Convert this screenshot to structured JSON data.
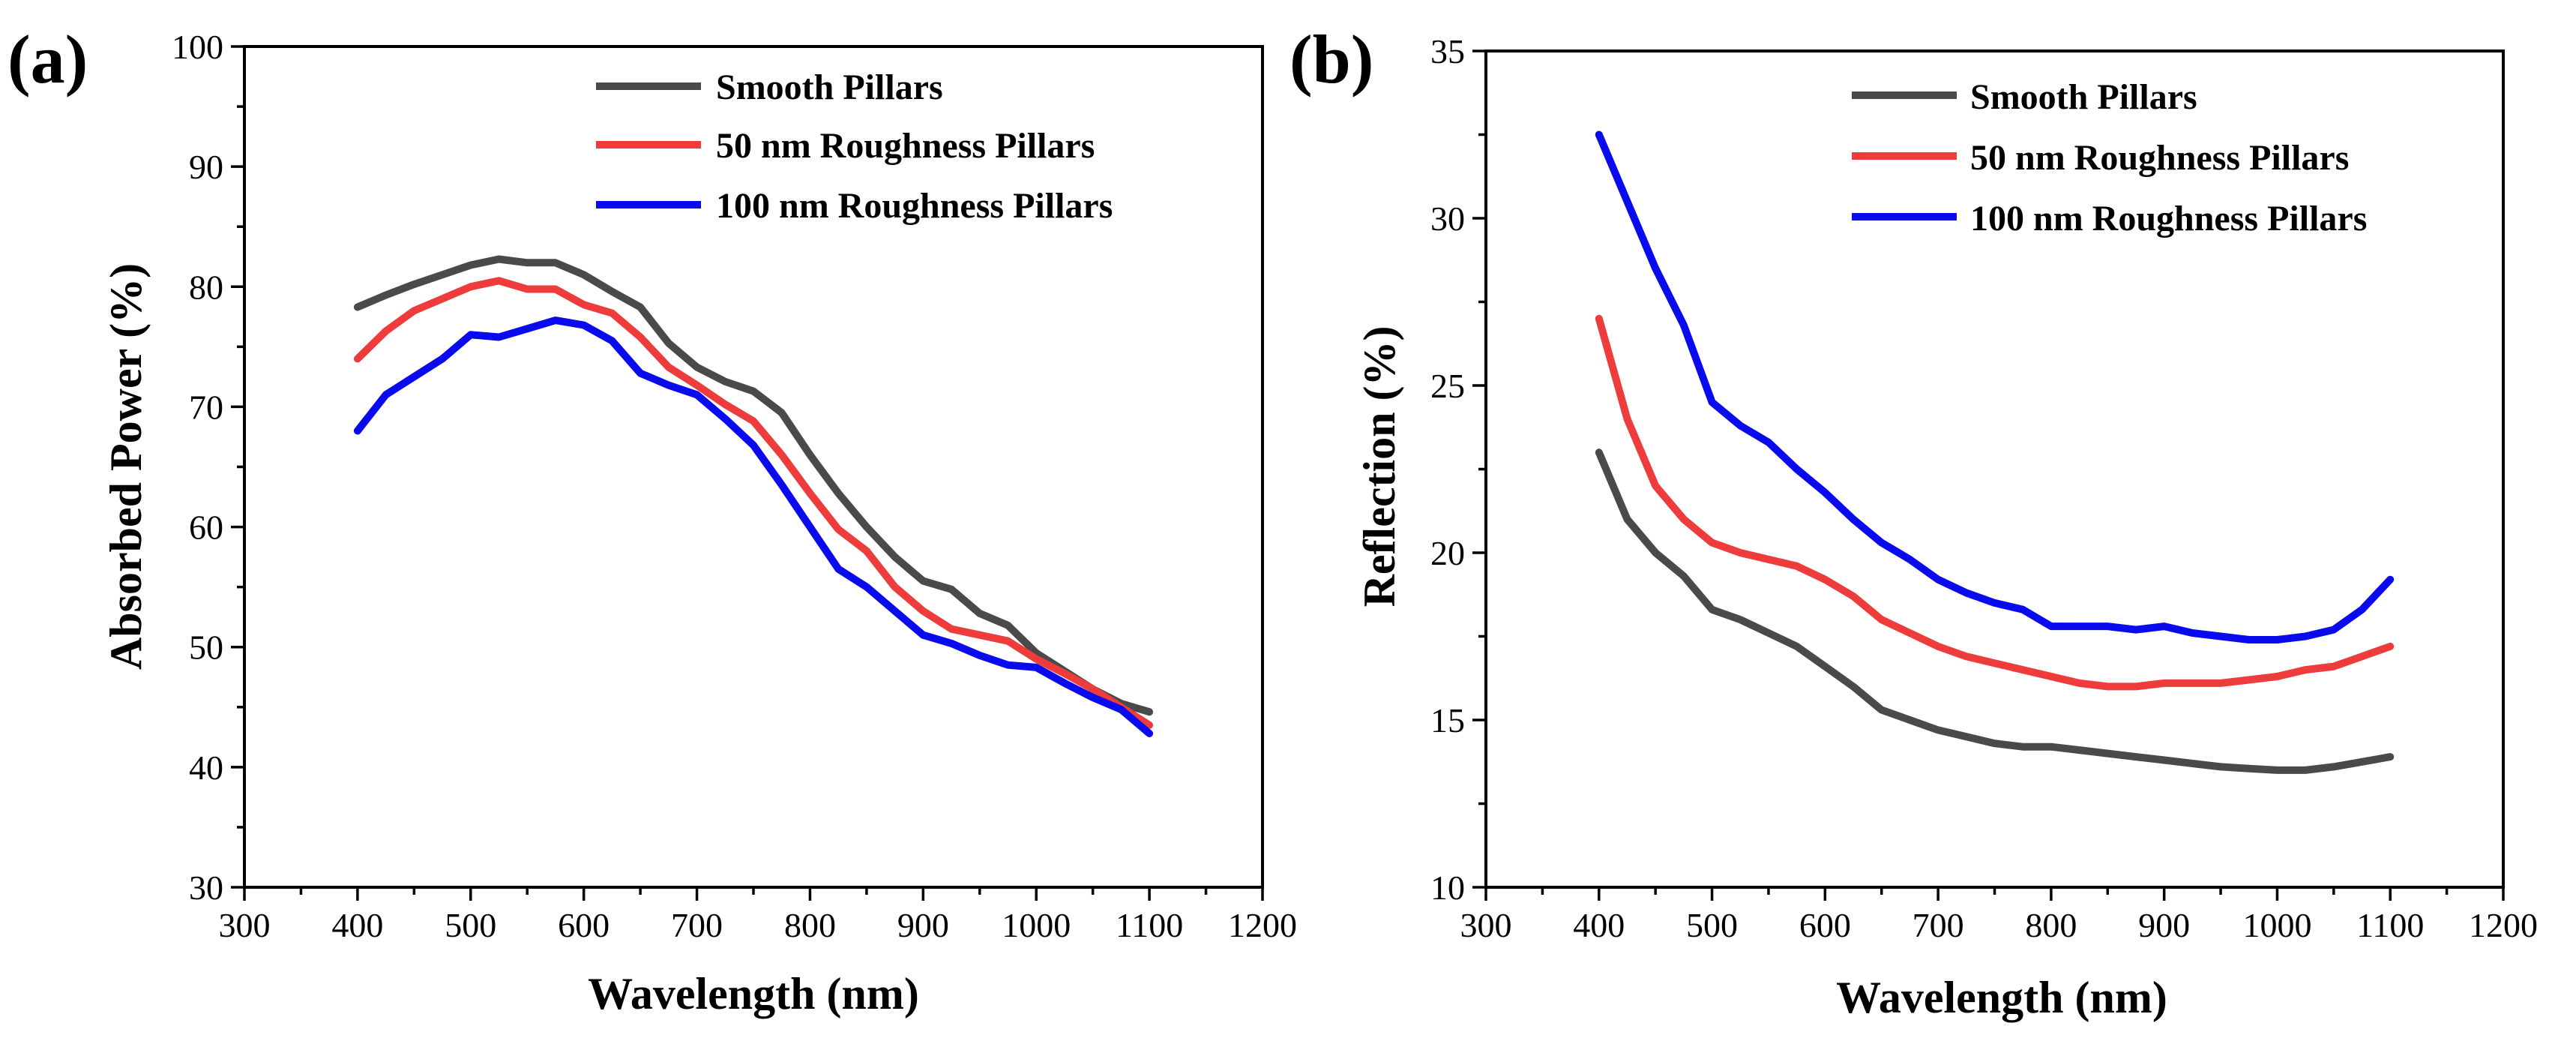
{
  "figure_title": "",
  "chart_data": [
    {
      "panel": "(a)",
      "type": "line",
      "title": "",
      "xlabel": "Wavelength (nm)",
      "ylabel": "Absorbed Power (%)",
      "xlim": [
        300,
        1200
      ],
      "ylim": [
        30,
        100
      ],
      "xticks": [
        300,
        400,
        500,
        600,
        700,
        800,
        900,
        1000,
        1100,
        1200
      ],
      "yticks": [
        30,
        40,
        50,
        60,
        70,
        80,
        90,
        100
      ],
      "grid": false,
      "legend_position": "top-right",
      "x": [
        400,
        425,
        450,
        475,
        500,
        525,
        550,
        575,
        600,
        625,
        650,
        675,
        700,
        725,
        750,
        775,
        800,
        825,
        850,
        875,
        900,
        925,
        950,
        975,
        1000,
        1025,
        1050,
        1075,
        1100
      ],
      "series": [
        {
          "name": "Smooth Pillars",
          "color": "#4a4a4a",
          "values": [
            78.3,
            79.3,
            80.2,
            81.0,
            81.8,
            82.3,
            82.0,
            82.0,
            81.0,
            79.6,
            78.3,
            75.3,
            73.3,
            72.1,
            71.3,
            69.5,
            66.0,
            62.8,
            60.0,
            57.5,
            55.5,
            54.8,
            52.8,
            51.8,
            49.5,
            48.0,
            46.5,
            45.3,
            44.6
          ]
        },
        {
          "name": "50 nm Roughness Pillars",
          "color": "#ee3b3b",
          "values": [
            74.0,
            76.3,
            78.0,
            79.0,
            80.0,
            80.5,
            79.8,
            79.8,
            78.5,
            77.8,
            75.8,
            73.3,
            71.8,
            70.2,
            68.8,
            66.0,
            62.8,
            59.8,
            58.0,
            55.0,
            53.0,
            51.5,
            51.0,
            50.5,
            49.0,
            47.8,
            46.5,
            45.0,
            43.5
          ]
        },
        {
          "name": "100 nm Roughness Pillars",
          "color": "#0a0aee",
          "values": [
            68.0,
            71.0,
            72.5,
            74.0,
            76.0,
            75.8,
            76.5,
            77.2,
            76.8,
            75.5,
            72.8,
            71.8,
            71.0,
            69.0,
            66.8,
            63.5,
            60.0,
            56.5,
            55.0,
            53.0,
            51.0,
            50.3,
            49.3,
            48.5,
            48.3,
            47.0,
            45.8,
            44.8,
            42.8
          ]
        }
      ]
    },
    {
      "panel": "(b)",
      "type": "line",
      "title": "",
      "xlabel": "Wavelength (nm)",
      "ylabel": "Reflection (%)",
      "xlim": [
        300,
        1200
      ],
      "ylim": [
        10,
        35
      ],
      "xticks": [
        300,
        400,
        500,
        600,
        700,
        800,
        900,
        1000,
        1100,
        1200
      ],
      "yticks": [
        10,
        15,
        20,
        25,
        30,
        35
      ],
      "grid": false,
      "legend_position": "top-right",
      "x": [
        400,
        425,
        450,
        475,
        500,
        525,
        550,
        575,
        600,
        625,
        650,
        675,
        700,
        725,
        750,
        775,
        800,
        825,
        850,
        875,
        900,
        925,
        950,
        975,
        1000,
        1025,
        1050,
        1075,
        1100
      ],
      "series": [
        {
          "name": "Smooth Pillars",
          "color": "#4a4a4a",
          "values": [
            23.0,
            21.0,
            20.0,
            19.3,
            18.3,
            18.0,
            17.6,
            17.2,
            16.6,
            16.0,
            15.3,
            15.0,
            14.7,
            14.5,
            14.3,
            14.2,
            14.2,
            14.1,
            14.0,
            13.9,
            13.8,
            13.7,
            13.6,
            13.55,
            13.5,
            13.5,
            13.6,
            13.75,
            13.9
          ]
        },
        {
          "name": "50 nm Roughness Pillars",
          "color": "#ee3b3b",
          "values": [
            27.0,
            24.0,
            22.0,
            21.0,
            20.3,
            20.0,
            19.8,
            19.6,
            19.2,
            18.7,
            18.0,
            17.6,
            17.2,
            16.9,
            16.7,
            16.5,
            16.3,
            16.1,
            16.0,
            16.0,
            16.1,
            16.1,
            16.1,
            16.2,
            16.3,
            16.5,
            16.6,
            16.9,
            17.2
          ]
        },
        {
          "name": "100 nm Roughness Pillars",
          "color": "#0a0aee",
          "values": [
            32.5,
            30.5,
            28.5,
            26.8,
            24.5,
            23.8,
            23.3,
            22.5,
            21.8,
            21.0,
            20.3,
            19.8,
            19.2,
            18.8,
            18.5,
            18.3,
            17.8,
            17.8,
            17.8,
            17.7,
            17.8,
            17.6,
            17.5,
            17.4,
            17.4,
            17.5,
            17.7,
            18.3,
            19.2
          ]
        }
      ]
    }
  ]
}
